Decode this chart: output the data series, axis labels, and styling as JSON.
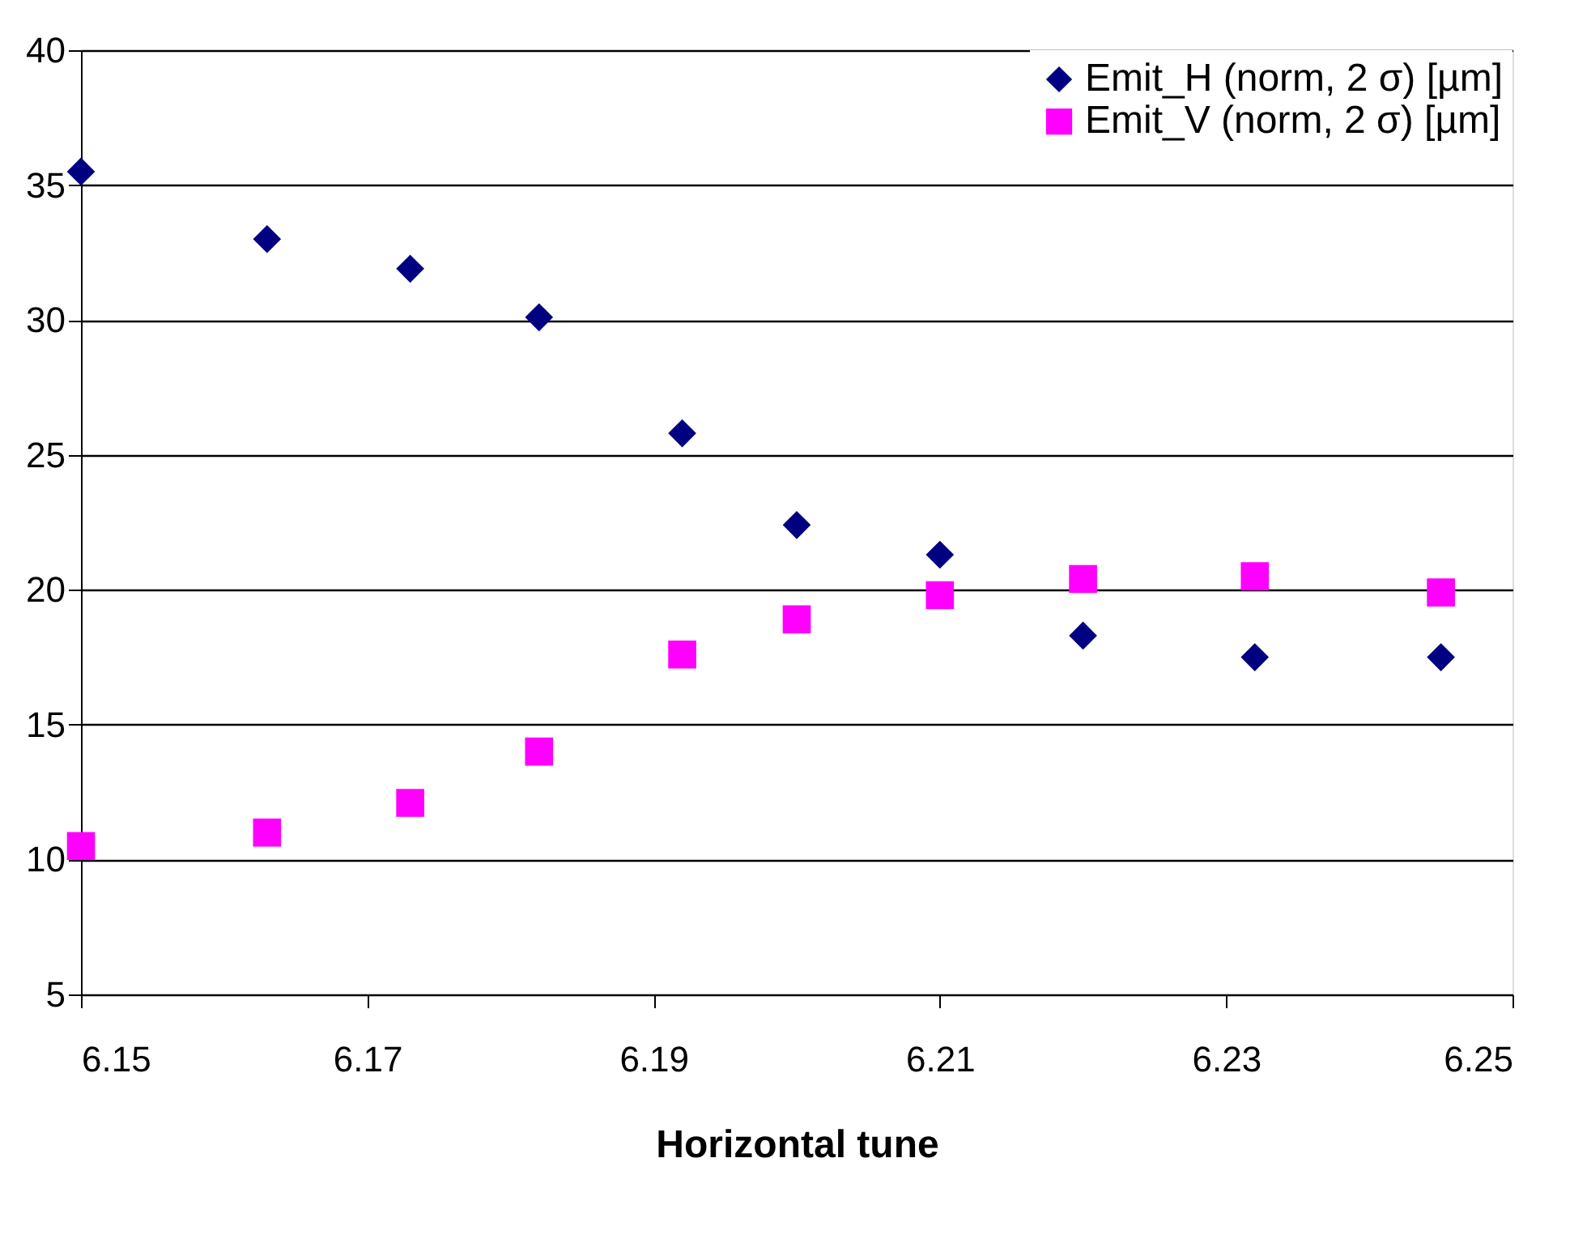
{
  "chart_data": {
    "type": "scatter",
    "xlabel": "Horizontal tune",
    "x": [
      6.15,
      6.163,
      6.173,
      6.182,
      6.192,
      6.2,
      6.21,
      6.22,
      6.232,
      6.245
    ],
    "series": [
      {
        "name": "Emit_H (norm, 2 σ) [µm]",
        "color": "#000080",
        "marker": "diamond",
        "values": [
          35.5,
          33.0,
          31.9,
          30.1,
          25.8,
          22.4,
          21.3,
          18.3,
          17.5,
          17.5
        ]
      },
      {
        "name": "Emit_V (norm, 2 σ) [µm]",
        "color": "#ff00ff",
        "marker": "square",
        "values": [
          10.5,
          11.0,
          12.1,
          14.0,
          17.6,
          18.9,
          19.8,
          20.4,
          20.5,
          19.9
        ]
      }
    ],
    "xlim": [
      6.15,
      6.25
    ],
    "xticks": [
      6.15,
      6.17,
      6.19,
      6.21,
      6.23,
      6.25
    ],
    "ylim": [
      5,
      40
    ],
    "yticks": [
      5,
      10,
      15,
      20,
      25,
      30,
      35,
      40
    ],
    "grid": "y",
    "legend": "top right"
  }
}
